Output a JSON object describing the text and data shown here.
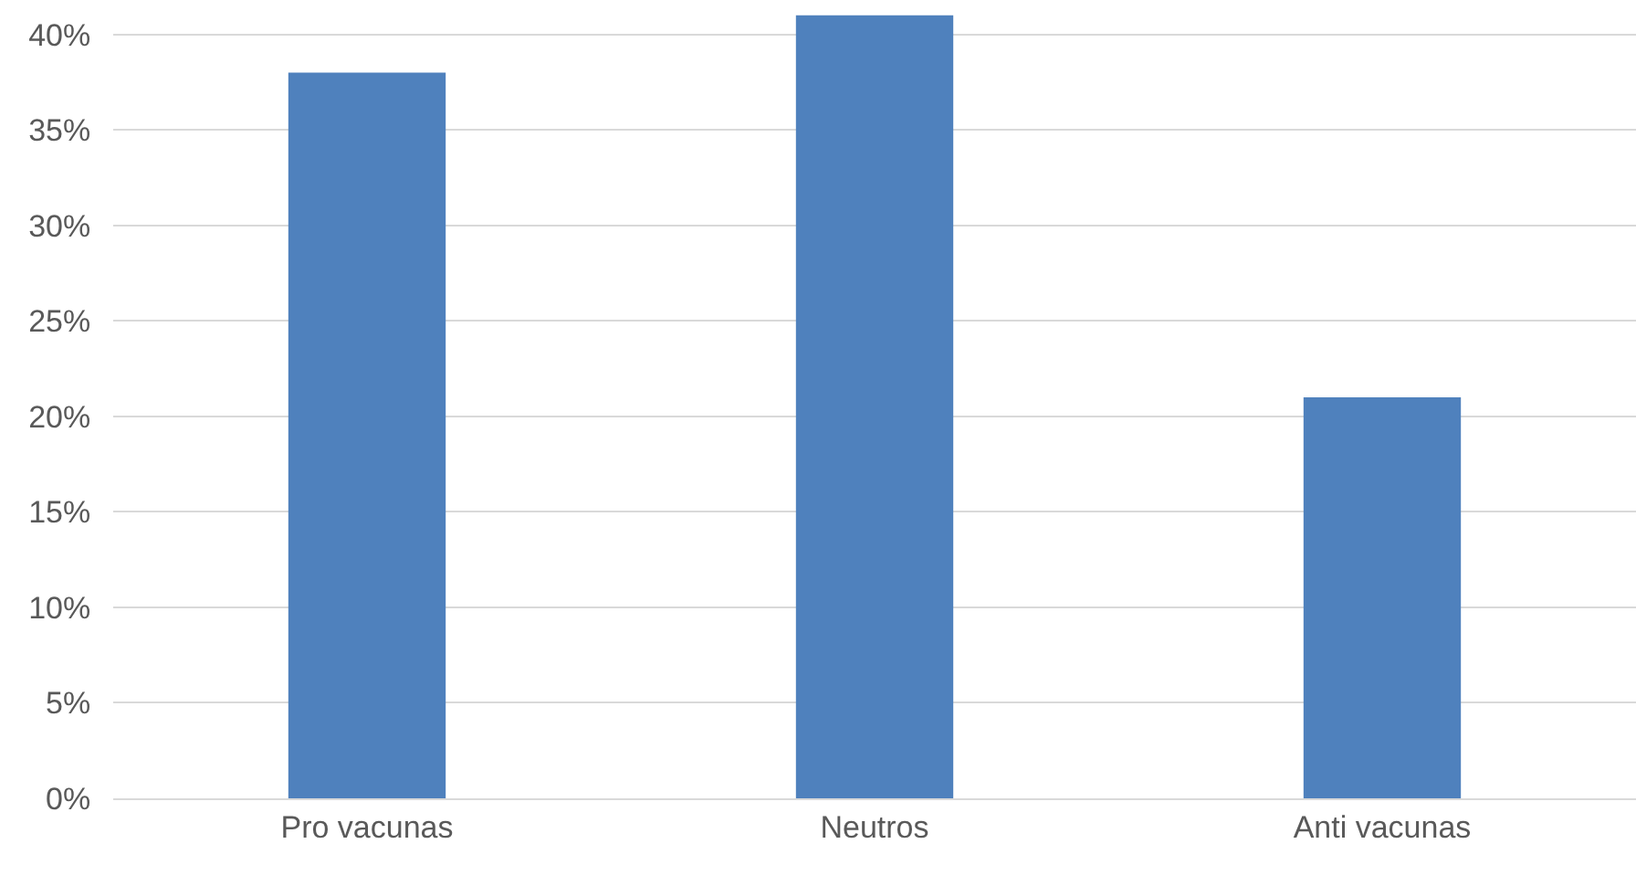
{
  "chart_data": {
    "type": "bar",
    "categories": [
      "Pro vacunas",
      "Neutros",
      "Anti vacunas"
    ],
    "values": [
      38,
      41,
      21
    ],
    "color": "#4f81bd",
    "ylim": [
      0,
      41.8
    ],
    "yticks": [
      {
        "value": 0,
        "label": "0%"
      },
      {
        "value": 5,
        "label": "5%"
      },
      {
        "value": 10,
        "label": "10%"
      },
      {
        "value": 15,
        "label": "15%"
      },
      {
        "value": 20,
        "label": "20%"
      },
      {
        "value": 25,
        "label": "25%"
      },
      {
        "value": 30,
        "label": "30%"
      },
      {
        "value": 35,
        "label": "35%"
      },
      {
        "value": 40,
        "label": "40%"
      }
    ],
    "grid": "y"
  }
}
